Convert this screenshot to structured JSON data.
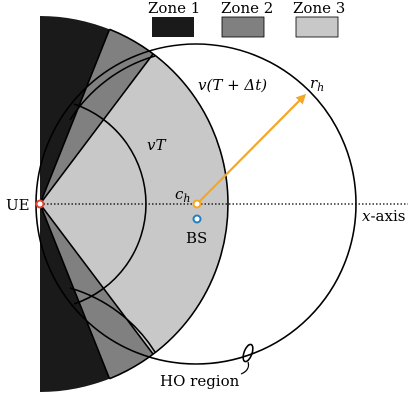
{
  "legend": {
    "zones": [
      {
        "label": "Zone 1",
        "color": "#1a1a1a"
      },
      {
        "label": "Zone 2",
        "color": "#808080"
      },
      {
        "label": "Zone 3",
        "color": "#c8c8c8"
      }
    ]
  },
  "labels": {
    "ue": "UE",
    "bs": "BS",
    "center": "c",
    "center_sub": "h",
    "radius": "r",
    "radius_sub": "h",
    "inner_arc": "vT",
    "outer_arc": "v(T + Δt)",
    "axis": "x",
    "axis_suffix": "-axis",
    "ho_region": "HO region"
  },
  "colors": {
    "arrow": "#f5a623",
    "bs_marker": "#1e7fc1",
    "ue_marker": "#e0442e",
    "center_marker": "#f5a623"
  }
}
